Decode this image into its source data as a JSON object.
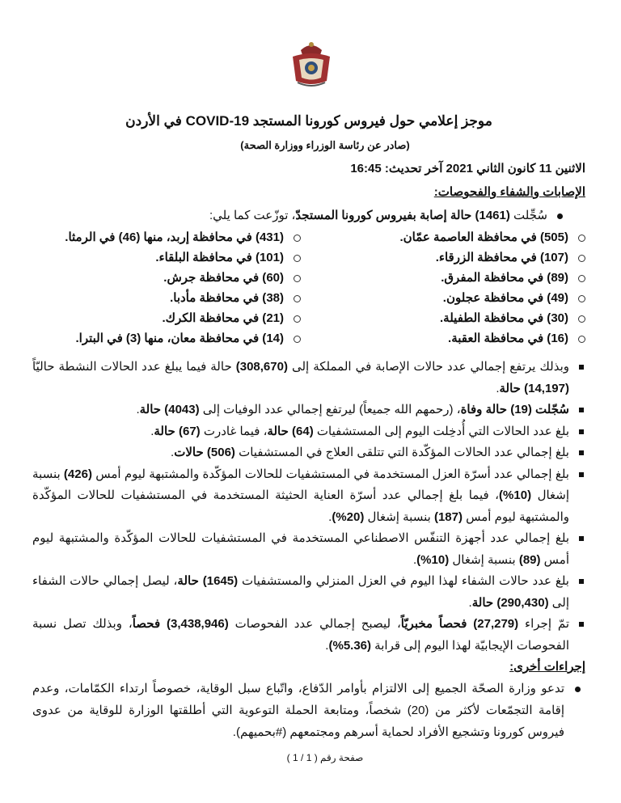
{
  "header": {
    "logo_text": "رئاسة الوزراء",
    "title": "موجز إعلامي حول فيروس كورونا المستجد COVID-19 في الأردن",
    "subtitle": "(صادر عن رئاسة الوزراء ووزارة الصحة)",
    "date": "الاثنين 11 كانون الثاني 2021 آخر تحديث: 16:45"
  },
  "section1": {
    "heading": "الإصابات والشفاء والفحوصات:",
    "first_bullet": [
      {
        "t": "سُجِّلت ",
        "b": false
      },
      {
        "t": "(1461) حالة إصابة بفيروس كورونا المستجدّ",
        "b": true
      },
      {
        "t": "، توزّعت كما يلي:",
        "b": false
      }
    ],
    "districts": [
      [
        "(505) في محافظة العاصمة عمّان.",
        "(431) في محافظة إربد، منها (46) في الرمثا."
      ],
      [
        "(107) في محافظة الزرقاء.",
        "(101) في محافظة البلقاء."
      ],
      [
        "(89) في محافظة المفرق.",
        "(60) في محافظة جرش."
      ],
      [
        "(49) في محافظة عجلون.",
        "(38) في محافظة مأدبا."
      ],
      [
        "(30) في محافظة الطفيلة.",
        "(21) في محافظة الكرك."
      ],
      [
        "(16) في محافظة العقبة.",
        "(14) في محافظة معان، منها (3) في البترا."
      ]
    ],
    "bullets": [
      [
        {
          "t": "وبذلك يرتفع إجمالي عدد حالات الإصابة في المملكة إلى ",
          "b": false
        },
        {
          "t": "(308,670)",
          "b": true
        },
        {
          "t": " حالة فيما يبلغ عدد الحالات النشطة حاليّاً ",
          "b": false
        },
        {
          "t": "(14,197) حالة",
          "b": true
        },
        {
          "t": ".",
          "b": false
        }
      ],
      [
        {
          "t": "سُجّلت (19) حالة وفاة",
          "b": true
        },
        {
          "t": "، (رحمهم الله جميعاً) ليرتفع إجمالي عدد الوفيات إلى ",
          "b": false
        },
        {
          "t": "(4043) حالة",
          "b": true
        },
        {
          "t": ".",
          "b": false
        }
      ],
      [
        {
          "t": "بلغ عدد الحالات التي أُدخِلت اليوم إلى المستشفيات ",
          "b": false
        },
        {
          "t": "(64) حالة",
          "b": true
        },
        {
          "t": "، فيما غادرت ",
          "b": false
        },
        {
          "t": "(67) حالة",
          "b": true
        },
        {
          "t": ".",
          "b": false
        }
      ],
      [
        {
          "t": "بلغ إجمالي عدد الحالات المؤكّدة التي تتلقى العلاج في المستشفيات ",
          "b": false
        },
        {
          "t": "(506) حالات",
          "b": true
        },
        {
          "t": ".",
          "b": false
        }
      ],
      [
        {
          "t": "بلغ إجمالي عدد أسرّة العزل المستخدمة في المستشفيات للحالات المؤكّدة والمشتبهة ليوم أمس ",
          "b": false
        },
        {
          "t": "(426)",
          "b": true
        },
        {
          "t": " بنسبة إشغال ",
          "b": false
        },
        {
          "t": "(10%)",
          "b": true
        },
        {
          "t": "، فيما بلغ إجمالي عدد أسرّة العناية الحثيثة المستخدمة في المستشفيات للحالات المؤكّدة والمشتبهة ليوم أمس ",
          "b": false
        },
        {
          "t": "(187)",
          "b": true
        },
        {
          "t": " بنسبة إشغال ",
          "b": false
        },
        {
          "t": "(20%)",
          "b": true
        },
        {
          "t": ".",
          "b": false
        }
      ],
      [
        {
          "t": "بلغ إجمالي عدد أجهزة التنفّس الاصطناعي المستخدمة في المستشفيات للحالات المؤكّدة والمشتبهة ليوم أمس ",
          "b": false
        },
        {
          "t": "(89)",
          "b": true
        },
        {
          "t": " بنسبة إشغال ",
          "b": false
        },
        {
          "t": "(10%)",
          "b": true
        },
        {
          "t": ".",
          "b": false
        }
      ],
      [
        {
          "t": "بلغ عدد حالات الشفاء لهذا اليوم في العزل المنزلي والمستشفيات ",
          "b": false
        },
        {
          "t": "(1645) حالة",
          "b": true
        },
        {
          "t": "، ليصل إجمالي حالات الشفاء إلى ",
          "b": false
        },
        {
          "t": "(290,430) حالة",
          "b": true
        },
        {
          "t": ".",
          "b": false
        }
      ],
      [
        {
          "t": "تمّ إجراء ",
          "b": false
        },
        {
          "t": "(27,279) فحصاً مخبريّاً",
          "b": true
        },
        {
          "t": "، ليصبح إجمالي عدد الفحوصات ",
          "b": false
        },
        {
          "t": "(3,438,946) فحصاً",
          "b": true
        },
        {
          "t": "، وبذلك تصل نسبة الفحوصات الإيجابيّة لهذا اليوم إلى قرابة ",
          "b": false
        },
        {
          "t": "(5.36%)",
          "b": true
        },
        {
          "t": ".",
          "b": false
        }
      ]
    ]
  },
  "section2": {
    "heading": "إجراءات أخرى:",
    "text": "تدعو وزارة الصحّة الجميع إلى الالتزام بأوامر الدّفاع، واتّباع سبل الوقاية، خصوصاً ارتداء الكمّامات، وعدم إقامة التجمّعات لأكثر من (20) شخصاً، ومتابعة الحملة التوعوية التي أطلقتها الوزارة للوقاية من عدوى فيروس كورونا وتشجيع الأفراد لحماية أسرهم ومجتمعهم (#بحميهم)."
  },
  "footer": {
    "page_number": "صفحة رقم ( 1 / 1 )"
  }
}
